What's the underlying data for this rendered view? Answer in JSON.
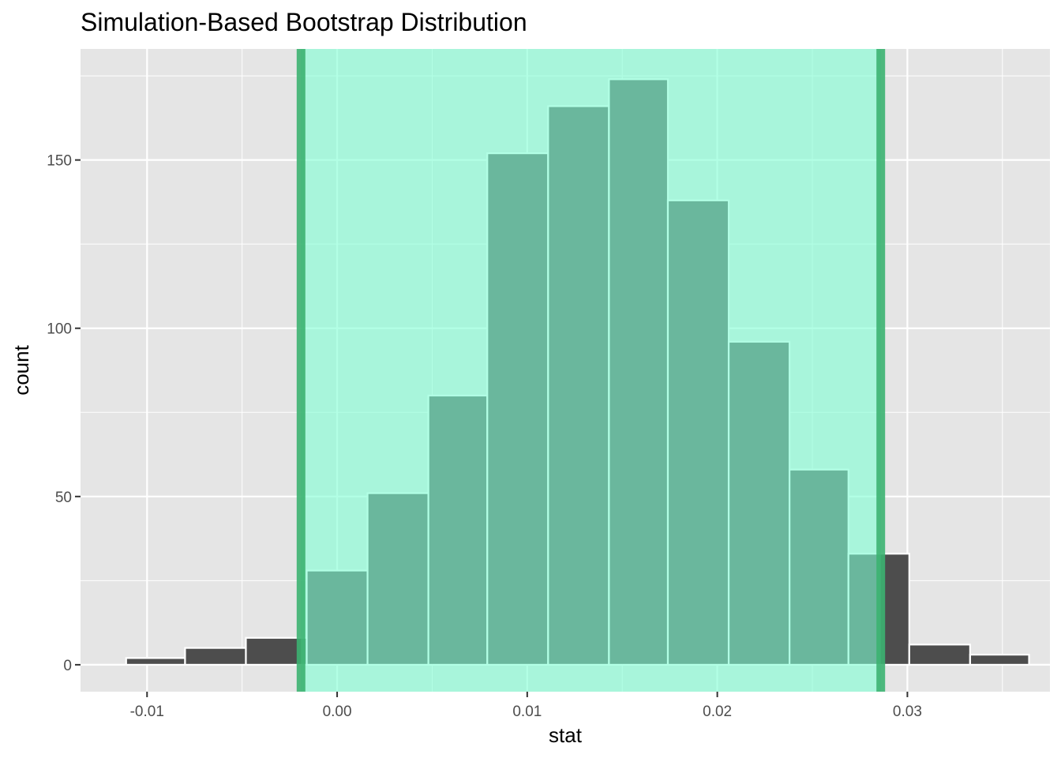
{
  "chart_data": {
    "type": "bar",
    "title": "Simulation-Based Bootstrap Distribution",
    "xlabel": "stat",
    "ylabel": "count",
    "xlim": [
      -0.0135,
      0.0375
    ],
    "ylim": [
      -8,
      183
    ],
    "x_ticks": [
      {
        "value": -0.01,
        "label": "-0.01"
      },
      {
        "value": 0.0,
        "label": "0.00"
      },
      {
        "value": 0.01,
        "label": "0.01"
      },
      {
        "value": 0.02,
        "label": "0.02"
      },
      {
        "value": 0.03,
        "label": "0.03"
      }
    ],
    "y_ticks": [
      {
        "value": 0,
        "label": "0"
      },
      {
        "value": 50,
        "label": "50"
      },
      {
        "value": 100,
        "label": "100"
      },
      {
        "value": 150,
        "label": "150"
      }
    ],
    "bins": [
      {
        "x0": -0.0111,
        "x1": -0.008,
        "count": 2
      },
      {
        "x0": -0.008,
        "x1": -0.0048,
        "count": 5
      },
      {
        "x0": -0.0048,
        "x1": -0.0016,
        "count": 8
      },
      {
        "x0": -0.0016,
        "x1": 0.0016,
        "count": 28
      },
      {
        "x0": 0.0016,
        "x1": 0.0048,
        "count": 51
      },
      {
        "x0": 0.0048,
        "x1": 0.0079,
        "count": 80
      },
      {
        "x0": 0.0079,
        "x1": 0.0111,
        "count": 152
      },
      {
        "x0": 0.0111,
        "x1": 0.0143,
        "count": 166
      },
      {
        "x0": 0.0143,
        "x1": 0.0174,
        "count": 174
      },
      {
        "x0": 0.0174,
        "x1": 0.0206,
        "count": 138
      },
      {
        "x0": 0.0206,
        "x1": 0.0238,
        "count": 96
      },
      {
        "x0": 0.0238,
        "x1": 0.0269,
        "count": 58
      },
      {
        "x0": 0.0269,
        "x1": 0.0301,
        "count": 33
      },
      {
        "x0": 0.0301,
        "x1": 0.0333,
        "count": 6
      },
      {
        "x0": 0.0333,
        "x1": 0.0364,
        "count": 3
      }
    ],
    "confidence_interval": {
      "lower": -0.0019,
      "upper": 0.0286
    },
    "grid": true,
    "colors": {
      "panel_background": "#e5e5e5",
      "grid": "#ffffff",
      "bar_fill": "#4d4d4d",
      "bar_outline": "#ffffff",
      "interval_shade": "#7fffd4",
      "interval_line": "#3cb371"
    }
  }
}
